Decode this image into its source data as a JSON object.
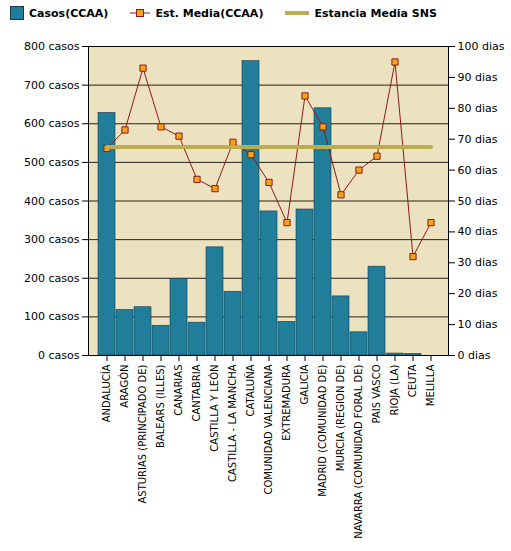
{
  "chart_data": {
    "type": "bar",
    "categories": [
      "ANDALUCÍA",
      "ARAGÓN",
      "ASTURIAS (PRINCIPADO DE)",
      "BALEARS (ILLES)",
      "CANARIAS",
      "CANTABRIA",
      "CASTILLA Y LEÓN",
      "CASTILLA - LA MANCHA",
      "CATALUÑA",
      "COMUNIDAD VALENCIANA",
      "EXTREMADURA",
      "GALICIA",
      "MADRID (COMUNIDAD DE)",
      "MURCIA (REGION DE)",
      "NAVARRA (COMUNIDAD FORAL DE)",
      "PAIS VASCO",
      "RIOJA (LA)",
      "CEUTA",
      "MELILLA"
    ],
    "series": [
      {
        "name": "Casos(CCAA)",
        "type": "bar",
        "color": "#217e9a",
        "values": [
          628,
          118,
          125,
          77,
          198,
          85,
          280,
          165,
          762,
          373,
          87,
          378,
          640,
          153,
          60,
          230,
          5,
          4,
          0
        ]
      },
      {
        "name": "Est. Media(CCAA)",
        "type": "line",
        "axis": "y2",
        "marker": "square",
        "color": "#8b1a1a",
        "values": [
          67,
          73,
          93,
          74,
          71,
          57,
          54,
          69,
          65,
          56,
          43,
          84,
          74,
          52,
          60,
          64.5,
          95,
          32,
          43
        ]
      },
      {
        "name": "Estancia Media SNS",
        "type": "line",
        "axis": "y2",
        "color": "#bcae4e",
        "values": [
          67.5,
          67.5,
          67.5,
          67.5,
          67.5,
          67.5,
          67.5,
          67.5,
          67.5,
          67.5,
          67.5,
          67.5,
          67.5,
          67.5,
          67.5,
          67.5,
          67.5,
          67.5,
          67.5
        ]
      }
    ],
    "ylim": [
      0,
      800
    ],
    "yticks": [
      {
        "value": 0,
        "label": "0 casos"
      },
      {
        "value": 100,
        "label": "100 casos"
      },
      {
        "value": 200,
        "label": "200 casos"
      },
      {
        "value": 300,
        "label": "300 casos"
      },
      {
        "value": 400,
        "label": "400 casos"
      },
      {
        "value": 500,
        "label": "500 casos"
      },
      {
        "value": 600,
        "label": "600 casos"
      },
      {
        "value": 700,
        "label": "700 casos"
      },
      {
        "value": 800,
        "label": "800 casos"
      }
    ],
    "y2lim": [
      0,
      100
    ],
    "y2ticks": [
      {
        "value": 0,
        "label": "0 dias"
      },
      {
        "value": 10,
        "label": "10 dias"
      },
      {
        "value": 20,
        "label": "20 dias"
      },
      {
        "value": 30,
        "label": "30 dias"
      },
      {
        "value": 40,
        "label": "40 dias"
      },
      {
        "value": 50,
        "label": "50 dias"
      },
      {
        "value": 60,
        "label": "60 dias"
      },
      {
        "value": 70,
        "label": "70 dias"
      },
      {
        "value": 80,
        "label": "80 dias"
      },
      {
        "value": 90,
        "label": "90 dias"
      },
      {
        "value": 100,
        "label": "100 dias"
      }
    ],
    "grid": true,
    "legend": "top"
  }
}
